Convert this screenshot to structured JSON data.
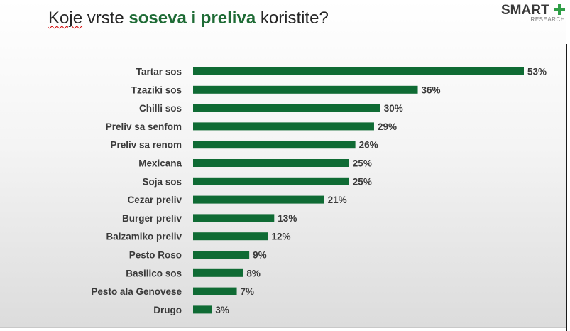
{
  "title": {
    "part1": "Koje",
    "part2": " vrste ",
    "highlight": "soseva i preliva",
    "part3": " koristite?"
  },
  "logo": {
    "main": "SMART",
    "sub": "RESEARCH",
    "plus_icon": "plus-icon",
    "plus_color": "#2e9e46"
  },
  "colors": {
    "bar": "#0f6b34",
    "title_highlight": "#1e6b35",
    "text": "#3a3a3a"
  },
  "chart_data": {
    "type": "bar",
    "orientation": "horizontal",
    "title": "Koje vrste soseva i preliva koristite?",
    "categories": [
      "Tartar sos",
      "Tzaziki sos",
      "Chilli sos",
      "Preliv sa senfom",
      "Preliv sa renom",
      "Mexicana",
      "Soja sos",
      "Cezar preliv",
      "Burger preliv",
      "Balzamiko preliv",
      "Pesto Roso",
      "Basilico sos",
      "Pesto ala Genovese",
      "Drugo"
    ],
    "values": [
      53,
      36,
      30,
      29,
      26,
      25,
      25,
      21,
      13,
      12,
      9,
      8,
      7,
      3
    ],
    "value_labels": [
      "53%",
      "36%",
      "30%",
      "29%",
      "26%",
      "25%",
      "25%",
      "21%",
      "13%",
      "12%",
      "9%",
      "8%",
      "7%",
      "3%"
    ],
    "unit": "%",
    "xlim": [
      0,
      53
    ],
    "grid": false,
    "legend": "none"
  }
}
